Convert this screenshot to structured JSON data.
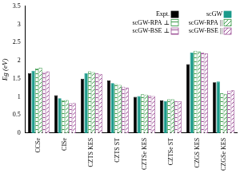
{
  "chart_data": {
    "type": "bar",
    "y_label": "Eg (eV)",
    "categories": [
      "CCSe",
      "CISe",
      "CZTS KES",
      "CZTS ST",
      "CZTSe KES",
      "CZTSe ST",
      "CZGS KES",
      "CZGSe KES"
    ],
    "series": [
      {
        "name": "Expt.",
        "color": "#000000",
        "values": [
          1.65,
          1.04,
          1.5,
          1.45,
          1.0,
          0.9,
          1.9,
          1.4
        ]
      },
      {
        "name": "scGW",
        "color": "#1a9a8a",
        "values": [
          1.72,
          0.96,
          1.65,
          1.38,
          1.02,
          0.88,
          2.22,
          1.42
        ]
      },
      {
        "name": "scGW-RPA ⊥",
        "color": "#3a9a4a",
        "values": [
          1.78,
          0.9,
          1.7,
          1.35,
          1.07,
          0.93,
          2.27,
          1.1
        ]
      },
      {
        "name": "scGW-RPA ||",
        "color": "#3a9a4a",
        "values": [
          1.8,
          0.91,
          1.68,
          1.33,
          1.06,
          0.93,
          2.25,
          1.08
        ]
      },
      {
        "name": "scGW-BSE ⊥",
        "color": "#9b4f96",
        "values": [
          1.68,
          0.82,
          1.65,
          1.28,
          1.03,
          0.88,
          2.22,
          1.17
        ]
      },
      {
        "name": "scGW-BSE ||",
        "color": "#9b4f96",
        "values": [
          1.7,
          0.83,
          1.63,
          1.25,
          1.02,
          0.88,
          2.2,
          1.18
        ]
      }
    ],
    "ylim": [
      0,
      3.5
    ],
    "yticks": [
      0,
      0.5,
      1,
      1.5,
      2,
      2.5,
      3,
      3.5
    ],
    "legend": "upper right",
    "grid": false
  }
}
